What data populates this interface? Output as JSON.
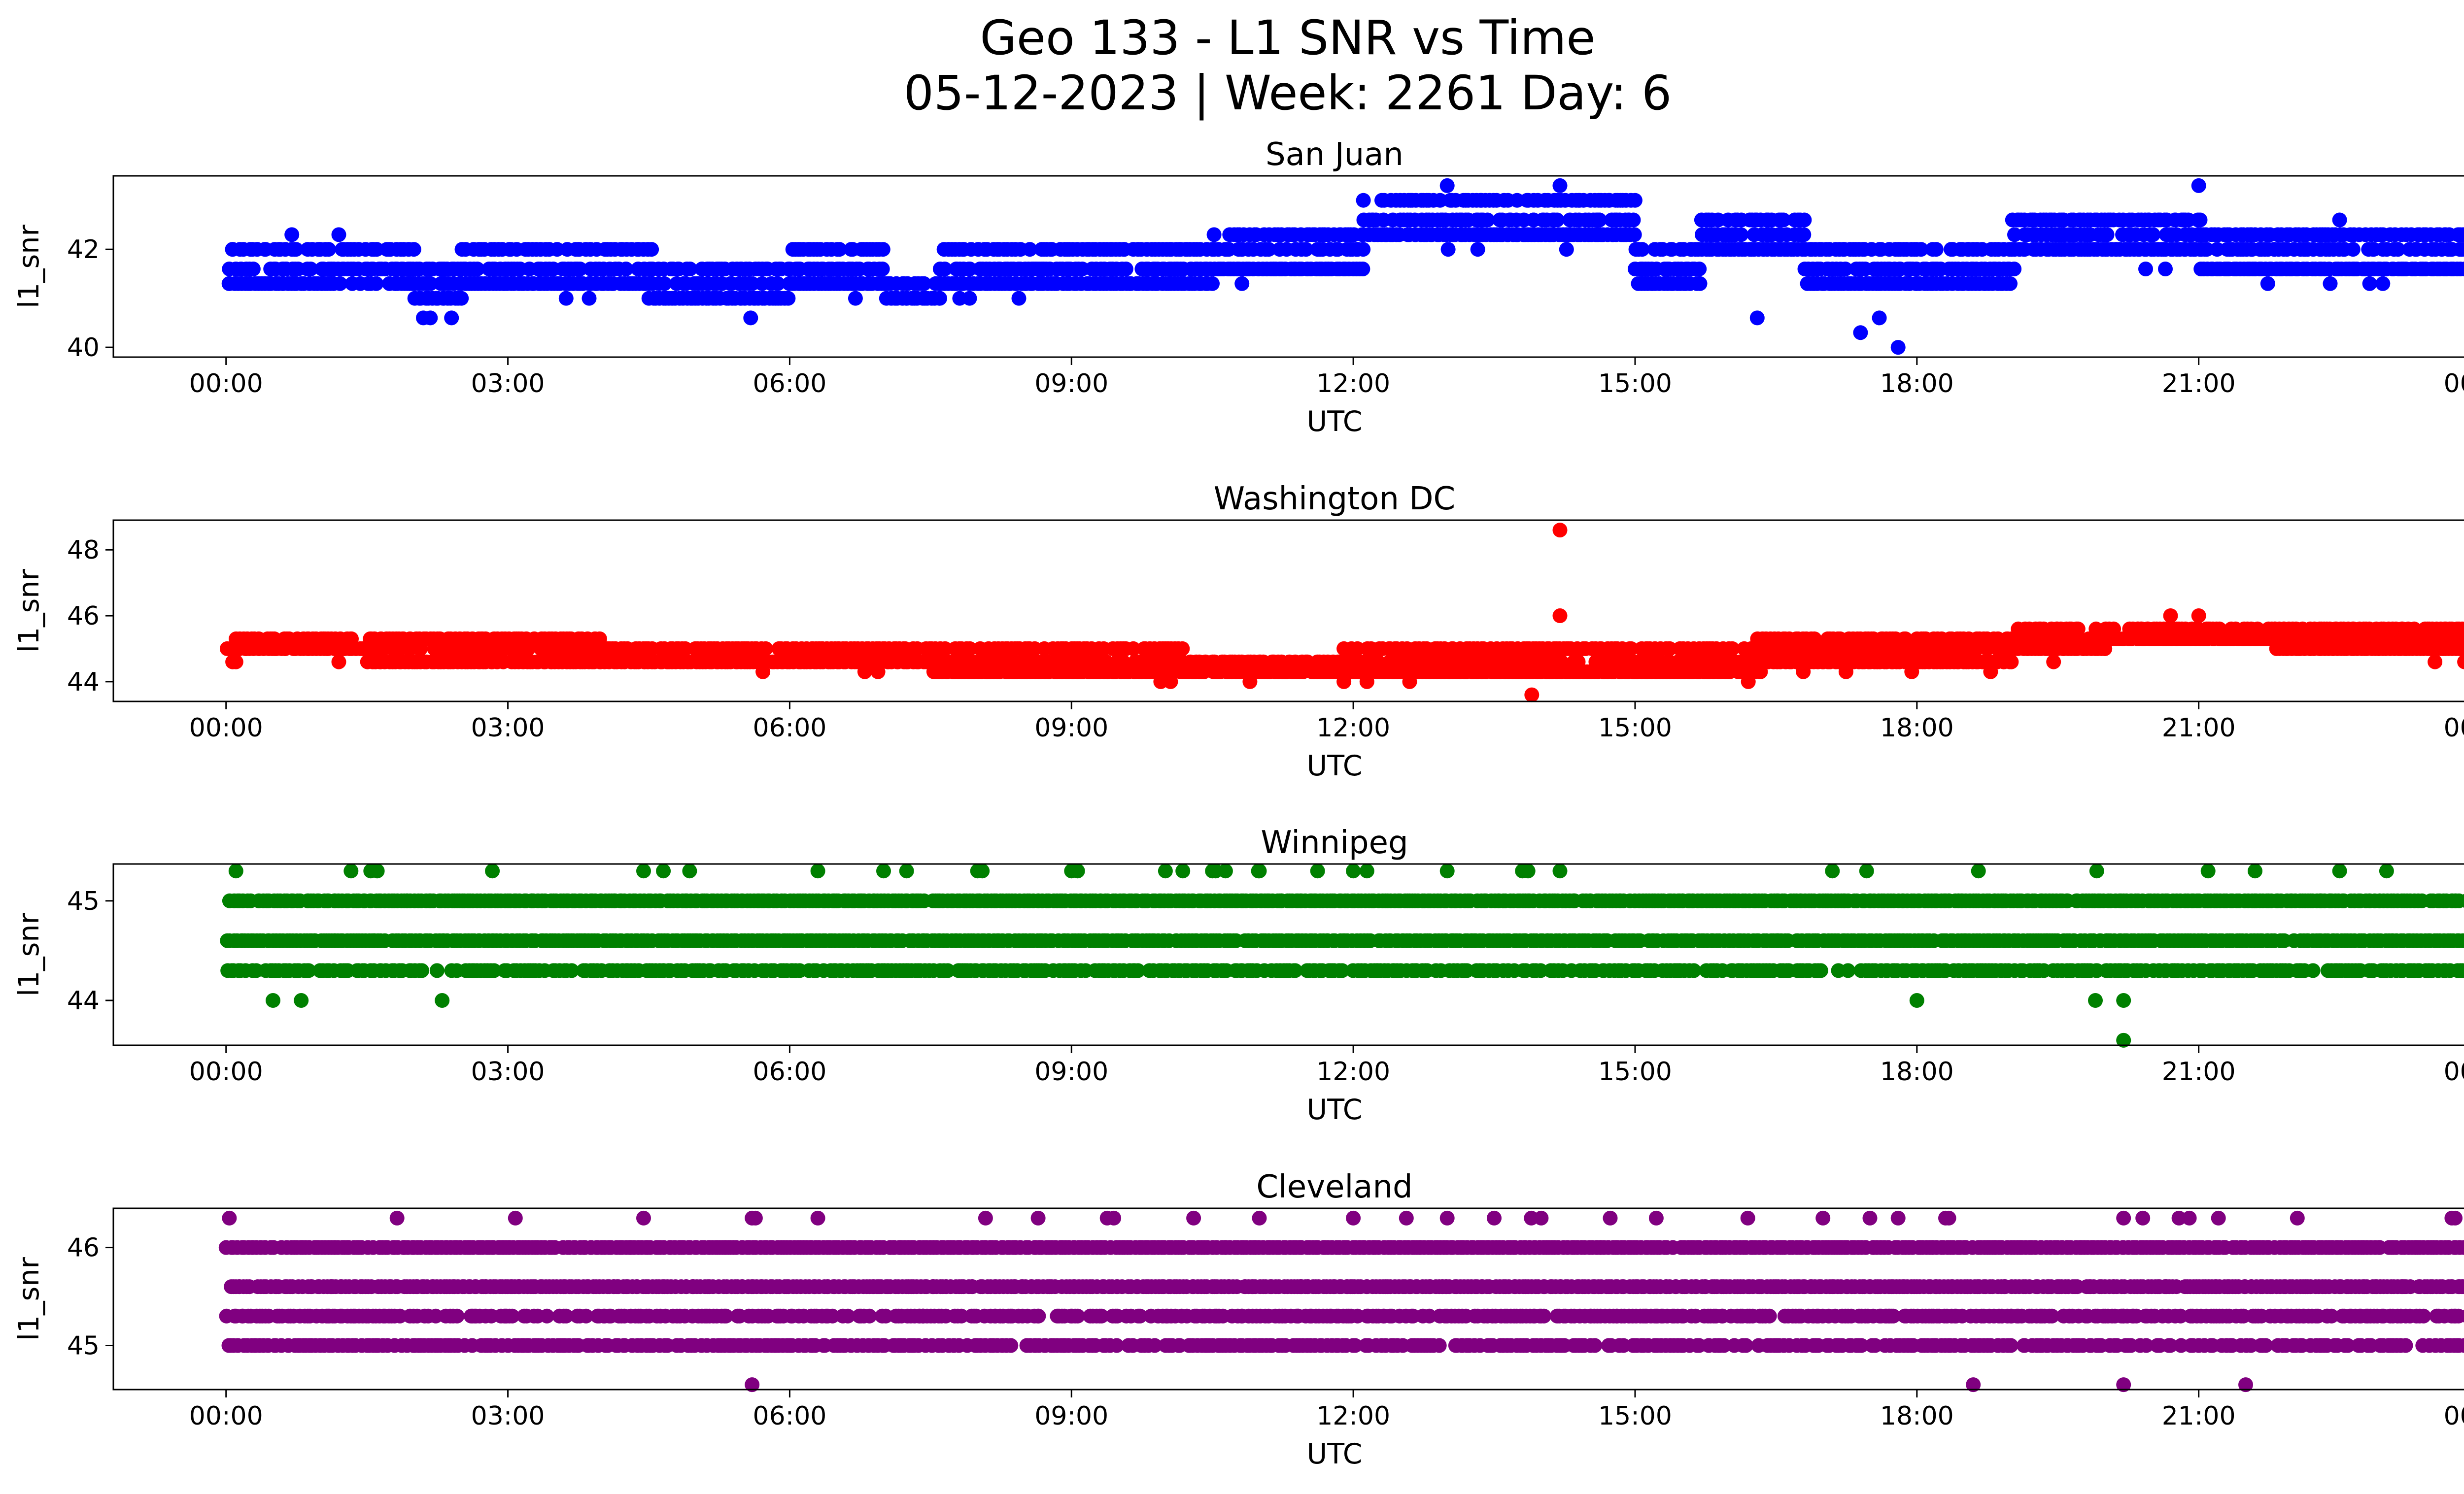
{
  "chart_data": {
    "type": "scatter",
    "title_line1": "Geo 133 - L1 SNR vs Time",
    "title_line2": "05-12-2023 | Week: 2261 Day: 6",
    "x_ticks": [
      "00:00",
      "03:00",
      "06:00",
      "09:00",
      "12:00",
      "15:00",
      "18:00",
      "21:00",
      "00:00"
    ],
    "x_range_hours": [
      -1.2,
      24.8
    ],
    "panels": [
      {
        "title": "San Juan",
        "xlabel": "UTC",
        "ylabel": "l1_snr",
        "color": "#0000ff",
        "ylim": [
          39.8,
          43.5
        ],
        "yticks": [
          40,
          42
        ],
        "ytick_labels": [
          "40",
          "42"
        ],
        "levels": [
          40.0,
          40.3,
          40.6,
          41.0,
          41.3,
          41.6,
          42.0,
          42.3,
          42.6,
          43.0,
          43.3
        ],
        "segments": [
          {
            "t": [
              0.0,
              0.5
            ],
            "base": [
              41.3,
              41.6,
              42.0
            ]
          },
          {
            "t": [
              0.5,
              1.0
            ],
            "base": [
              41.3,
              41.6,
              42.0
            ]
          },
          {
            "t": [
              1.0,
              2.0
            ],
            "base": [
              41.6,
              42.0,
              41.3
            ]
          },
          {
            "t": [
              2.0,
              2.5
            ],
            "base": [
              41.0,
              41.3,
              41.6
            ]
          },
          {
            "t": [
              2.5,
              4.5
            ],
            "base": [
              41.3,
              41.6,
              42.0
            ]
          },
          {
            "t": [
              4.5,
              6.0
            ],
            "base": [
              41.0,
              41.3,
              41.6
            ]
          },
          {
            "t": [
              6.0,
              7.0
            ],
            "base": [
              41.3,
              41.6,
              42.0
            ]
          },
          {
            "t": [
              7.0,
              7.6
            ],
            "base": [
              41.0,
              41.3
            ]
          },
          {
            "t": [
              7.6,
              10.5
            ],
            "base": [
              41.3,
              41.6,
              42.0
            ]
          },
          {
            "t": [
              10.5,
              12.1
            ],
            "base": [
              41.6,
              42.0,
              42.3
            ]
          },
          {
            "t": [
              12.1,
              15.0
            ],
            "base": [
              42.3,
              42.6,
              43.0
            ]
          },
          {
            "t": [
              15.0,
              15.7
            ],
            "base": [
              41.3,
              41.6,
              42.0
            ]
          },
          {
            "t": [
              15.7,
              16.8
            ],
            "base": [
              42.0,
              42.3,
              42.6
            ]
          },
          {
            "t": [
              16.8,
              19.0
            ],
            "base": [
              41.3,
              41.6,
              42.0
            ]
          },
          {
            "t": [
              19.0,
              21.0
            ],
            "base": [
              42.0,
              42.3,
              42.6
            ]
          },
          {
            "t": [
              21.0,
              24.0
            ],
            "base": [
              41.6,
              42.0,
              42.3
            ]
          }
        ],
        "outliers": [
          [
            2.1,
            40.6
          ],
          [
            2.4,
            40.6
          ],
          [
            16.3,
            40.6
          ],
          [
            17.4,
            40.3
          ],
          [
            17.8,
            40.0
          ],
          [
            17.6,
            40.6
          ],
          [
            0.7,
            42.3
          ],
          [
            1.2,
            42.3
          ],
          [
            13.0,
            43.3
          ],
          [
            14.2,
            43.3
          ],
          [
            21.0,
            43.3
          ],
          [
            22.5,
            42.6
          ]
        ]
      },
      {
        "title": "Washington DC",
        "xlabel": "UTC",
        "ylabel": "l1_snr",
        "color": "#ff0000",
        "ylim": [
          43.4,
          48.9
        ],
        "yticks": [
          44,
          46,
          48
        ],
        "ytick_labels": [
          "44",
          "46",
          "48"
        ],
        "levels": [
          43.6,
          44.0,
          44.3,
          44.6,
          45.0,
          45.3,
          45.6,
          46.0,
          48.6
        ],
        "segments": [
          {
            "t": [
              0.0,
              1.5
            ],
            "base": [
              45.0,
              45.3
            ]
          },
          {
            "t": [
              1.5,
              4.0
            ],
            "base": [
              44.6,
              45.0,
              45.3
            ]
          },
          {
            "t": [
              4.0,
              7.5
            ],
            "base": [
              44.6,
              45.0
            ]
          },
          {
            "t": [
              7.5,
              10.2
            ],
            "base": [
              44.3,
              44.6,
              45.0
            ]
          },
          {
            "t": [
              10.2,
              11.9
            ],
            "base": [
              44.3,
              44.6
            ]
          },
          {
            "t": [
              11.9,
              16.3
            ],
            "base": [
              44.3,
              44.6,
              45.0
            ]
          },
          {
            "t": [
              16.3,
              19.0
            ],
            "base": [
              44.6,
              45.0,
              45.3
            ]
          },
          {
            "t": [
              19.0,
              20.0
            ],
            "base": [
              45.0,
              45.3,
              45.6
            ]
          },
          {
            "t": [
              20.0,
              21.8
            ],
            "base": [
              45.3,
              45.6
            ]
          },
          {
            "t": [
              21.8,
              24.0
            ],
            "base": [
              45.0,
              45.3,
              45.6
            ]
          }
        ],
        "outliers": [
          [
            14.2,
            48.6
          ],
          [
            14.2,
            46.0
          ],
          [
            13.9,
            43.6
          ],
          [
            11.9,
            44.0
          ],
          [
            20.7,
            46.0
          ],
          [
            21.0,
            46.0
          ],
          [
            1.2,
            44.6
          ]
        ]
      },
      {
        "title": "Winnipeg",
        "xlabel": "UTC",
        "ylabel": "l1_snr",
        "color": "#008000",
        "ylim": [
          43.55,
          45.37
        ],
        "yticks": [
          44,
          45
        ],
        "ytick_labels": [
          "44",
          "45"
        ],
        "levels": [
          43.6,
          44.0,
          44.3,
          44.6,
          45.0,
          45.3
        ],
        "segments": [
          {
            "t": [
              0.0,
              24.0
            ],
            "base": [
              44.6
            ]
          },
          {
            "t": [
              0.0,
              24.0
            ],
            "base": [
              45.0,
              44.3
            ]
          }
        ],
        "outliers": [
          [
            0.5,
            44.0
          ],
          [
            0.8,
            44.0
          ],
          [
            2.3,
            44.0
          ],
          [
            18.0,
            44.0
          ],
          [
            19.9,
            44.0
          ],
          [
            20.2,
            44.0
          ],
          [
            20.2,
            43.6
          ],
          [
            6.3,
            45.3
          ],
          [
            7.0,
            45.3
          ],
          [
            8.0,
            45.3
          ],
          [
            9.0,
            45.3
          ],
          [
            10.0,
            45.3
          ],
          [
            11.0,
            45.3
          ],
          [
            12.0,
            45.3
          ],
          [
            13.0,
            45.3
          ],
          [
            13.8,
            45.3
          ],
          [
            14.2,
            45.3
          ],
          [
            17.1,
            45.3
          ],
          [
            21.1,
            45.3
          ],
          [
            21.6,
            45.3
          ],
          [
            22.5,
            45.3
          ],
          [
            23.0,
            45.3
          ]
        ]
      },
      {
        "title": "Cleveland",
        "xlabel": "UTC",
        "ylabel": "l1_snr",
        "color": "#800080",
        "ylim": [
          44.55,
          46.4
        ],
        "yticks": [
          45,
          46
        ],
        "ytick_labels": [
          "45",
          "46"
        ],
        "levels": [
          44.6,
          45.0,
          45.3,
          45.6,
          46.0,
          46.3
        ],
        "segments": [
          {
            "t": [
              0.0,
              24.0
            ],
            "base": [
              45.6,
              45.3
            ]
          },
          {
            "t": [
              0.0,
              24.0
            ],
            "base": [
              46.0,
              45.0
            ]
          }
        ],
        "outliers": [
          [
            5.6,
            44.6
          ],
          [
            18.6,
            44.6
          ],
          [
            20.2,
            44.6
          ],
          [
            21.5,
            44.6
          ],
          [
            10.3,
            46.3
          ],
          [
            11.0,
            46.3
          ],
          [
            12.0,
            46.3
          ],
          [
            13.0,
            46.3
          ],
          [
            13.5,
            46.3
          ],
          [
            14.0,
            46.3
          ],
          [
            16.2,
            46.3
          ],
          [
            17.0,
            46.3
          ],
          [
            17.8,
            46.3
          ],
          [
            20.2,
            46.3
          ],
          [
            20.9,
            46.3
          ]
        ]
      }
    ]
  }
}
